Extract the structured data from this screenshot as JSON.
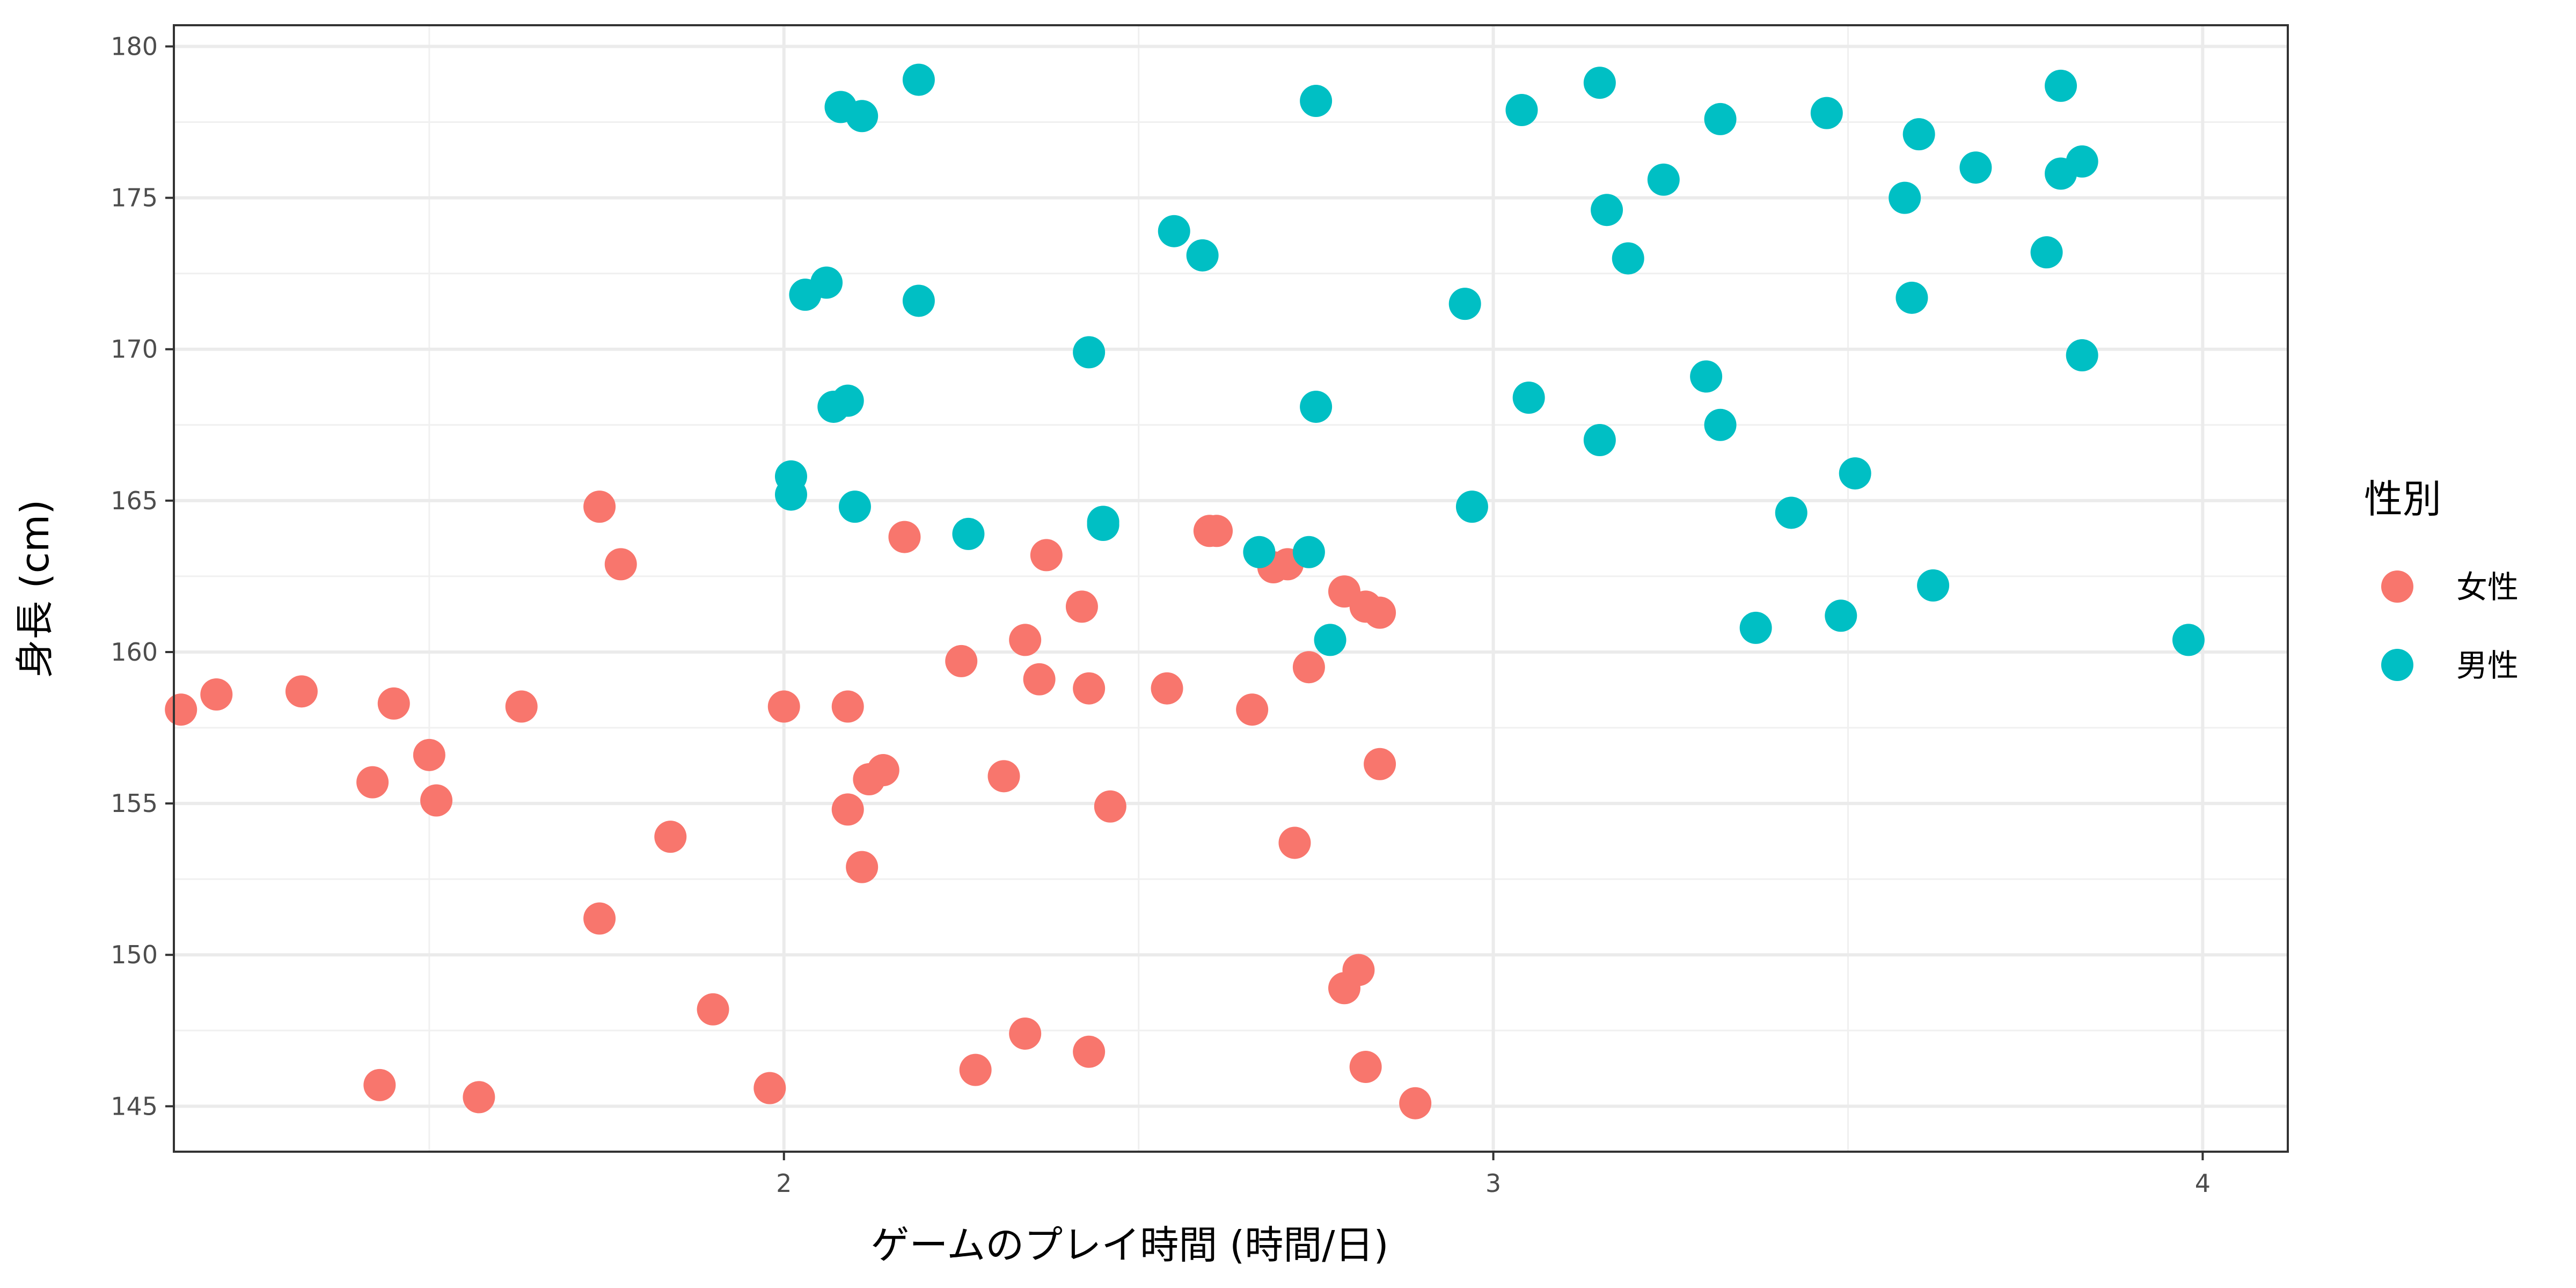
{
  "chart_data": {
    "type": "scatter",
    "title": "",
    "xlabel": "ゲームのプレイ時間 (時間/日)",
    "ylabel": "身長 (cm)",
    "xlim": [
      1.14,
      4.12
    ],
    "ylim": [
      143.5,
      180.7
    ],
    "x_ticks": [
      2,
      3,
      4
    ],
    "y_ticks": [
      145,
      150,
      155,
      160,
      165,
      170,
      175,
      180
    ],
    "grid": true,
    "legend": {
      "title": "性別",
      "position": "right"
    },
    "series": [
      {
        "name": "女性",
        "color": "#F8766D",
        "points": [
          [
            1.15,
            158.1
          ],
          [
            1.2,
            158.6
          ],
          [
            1.32,
            158.7
          ],
          [
            1.45,
            158.3
          ],
          [
            1.42,
            155.7
          ],
          [
            1.5,
            156.6
          ],
          [
            1.51,
            155.1
          ],
          [
            1.43,
            145.7
          ],
          [
            1.57,
            145.3
          ],
          [
            1.63,
            158.2
          ],
          [
            1.74,
            164.8
          ],
          [
            1.77,
            162.9
          ],
          [
            1.74,
            151.2
          ],
          [
            1.84,
            153.9
          ],
          [
            1.9,
            148.2
          ],
          [
            1.98,
            145.6
          ],
          [
            2.0,
            158.2
          ],
          [
            2.09,
            158.2
          ],
          [
            2.09,
            154.8
          ],
          [
            2.12,
            155.8
          ],
          [
            2.14,
            156.1
          ],
          [
            2.11,
            152.9
          ],
          [
            2.17,
            163.8
          ],
          [
            2.25,
            159.7
          ],
          [
            2.31,
            155.9
          ],
          [
            2.34,
            160.4
          ],
          [
            2.37,
            163.2
          ],
          [
            2.36,
            159.1
          ],
          [
            2.27,
            146.2
          ],
          [
            2.34,
            147.4
          ],
          [
            2.42,
            161.5
          ],
          [
            2.43,
            158.8
          ],
          [
            2.46,
            154.9
          ],
          [
            2.43,
            146.8
          ],
          [
            2.54,
            158.8
          ],
          [
            2.6,
            164.0
          ],
          [
            2.61,
            164.0
          ],
          [
            2.66,
            158.1
          ],
          [
            2.69,
            162.8
          ],
          [
            2.71,
            162.9
          ],
          [
            2.72,
            153.7
          ],
          [
            2.74,
            159.5
          ],
          [
            2.79,
            162.0
          ],
          [
            2.82,
            161.5
          ],
          [
            2.84,
            161.3
          ],
          [
            2.84,
            156.3
          ],
          [
            2.81,
            149.5
          ],
          [
            2.79,
            148.9
          ],
          [
            2.82,
            146.3
          ],
          [
            2.89,
            145.1
          ]
        ]
      },
      {
        "name": "男性",
        "color": "#00BFC4",
        "points": [
          [
            2.08,
            178.0
          ],
          [
            2.11,
            177.7
          ],
          [
            2.19,
            178.9
          ],
          [
            2.03,
            171.8
          ],
          [
            2.06,
            172.2
          ],
          [
            2.19,
            171.6
          ],
          [
            2.07,
            168.1
          ],
          [
            2.09,
            168.3
          ],
          [
            2.01,
            165.8
          ],
          [
            2.01,
            165.2
          ],
          [
            2.1,
            164.8
          ],
          [
            2.26,
            163.9
          ],
          [
            2.43,
            169.9
          ],
          [
            2.45,
            164.2
          ],
          [
            2.45,
            164.3
          ],
          [
            2.55,
            173.9
          ],
          [
            2.59,
            173.1
          ],
          [
            2.67,
            163.3
          ],
          [
            2.74,
            163.3
          ],
          [
            2.75,
            168.1
          ],
          [
            2.75,
            178.2
          ],
          [
            2.77,
            160.4
          ],
          [
            2.96,
            171.5
          ],
          [
            2.97,
            164.8
          ],
          [
            3.04,
            177.9
          ],
          [
            3.05,
            168.4
          ],
          [
            3.15,
            178.8
          ],
          [
            3.16,
            174.6
          ],
          [
            3.15,
            167.0
          ],
          [
            3.19,
            173.0
          ],
          [
            3.24,
            175.6
          ],
          [
            3.3,
            169.1
          ],
          [
            3.32,
            177.6
          ],
          [
            3.32,
            167.5
          ],
          [
            3.37,
            160.8
          ],
          [
            3.42,
            164.6
          ],
          [
            3.47,
            177.8
          ],
          [
            3.49,
            161.2
          ],
          [
            3.51,
            165.9
          ],
          [
            3.58,
            175.0
          ],
          [
            3.59,
            171.7
          ],
          [
            3.6,
            177.1
          ],
          [
            3.62,
            162.2
          ],
          [
            3.68,
            176.0
          ],
          [
            3.78,
            173.2
          ],
          [
            3.8,
            178.7
          ],
          [
            3.8,
            175.8
          ],
          [
            3.83,
            176.2
          ],
          [
            3.83,
            169.8
          ],
          [
            3.98,
            160.4
          ]
        ]
      }
    ]
  }
}
